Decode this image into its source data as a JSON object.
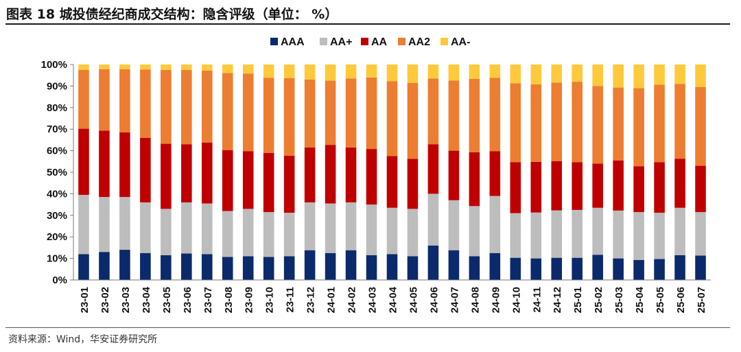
{
  "title": "图表 18 城投债经纪商成交结构：隐含评级（单位： %）",
  "source": "资料来源：Wind，华安证券研究所",
  "chart_data": {
    "type": "bar",
    "stacked": true,
    "title": "图表 18 城投债经纪商成交结构：隐含评级（单位： %）",
    "xlabel": "",
    "ylabel": "",
    "ylim": [
      0,
      100
    ],
    "y_ticks": [
      "0%",
      "10%",
      "20%",
      "30%",
      "40%",
      "50%",
      "60%",
      "70%",
      "80%",
      "90%",
      "100%"
    ],
    "legend_position": "top-center",
    "categories": [
      "23-01",
      "23-02",
      "23-03",
      "23-04",
      "23-05",
      "23-06",
      "23-07",
      "23-08",
      "23-09",
      "23-10",
      "23-11",
      "23-12",
      "24-01",
      "24-02",
      "24-03",
      "24-04",
      "24-05",
      "24-06",
      "24-07",
      "24-08",
      "24-09",
      "24-10",
      "24-11",
      "24-12",
      "25-01",
      "25-02",
      "25-03",
      "25-04",
      "25-05",
      "25-06",
      "25-07"
    ],
    "series": [
      {
        "name": "AAA",
        "color": "#0b2a6b",
        "values": [
          12,
          13,
          14,
          12.5,
          11.5,
          12.3,
          12,
          10.7,
          11,
          10.7,
          11,
          13.8,
          12.5,
          13.8,
          11.5,
          12,
          11,
          16,
          13.8,
          11,
          12.5,
          10.3,
          10,
          10.3,
          10.3,
          11.7,
          10,
          9.3,
          9.7,
          11.5,
          11.3
        ]
      },
      {
        "name": "AA+",
        "color": "#bdbdbd",
        "values": [
          27.5,
          25.5,
          24.5,
          23.5,
          21.5,
          23.7,
          23.5,
          21.3,
          22,
          20.8,
          20.2,
          22.2,
          23,
          22.2,
          23.5,
          21.5,
          22,
          24,
          23.2,
          23.3,
          26.5,
          20.7,
          21.3,
          22,
          22.2,
          21.8,
          22.2,
          22.2,
          21.5,
          22,
          20.2
        ]
      },
      {
        "name": "AA",
        "color": "#c00000",
        "values": [
          30.7,
          30.8,
          30,
          30,
          30.2,
          27,
          28.3,
          28.3,
          26.8,
          27.5,
          26.5,
          25.5,
          27.2,
          25.5,
          25.8,
          24,
          23.2,
          23,
          23,
          25,
          20.8,
          23.7,
          23.5,
          22.8,
          22.2,
          20.5,
          23.3,
          21.3,
          23.5,
          22.8,
          21.5
        ]
      },
      {
        "name": "AA2",
        "color": "#ed7d31",
        "values": [
          27.3,
          28.5,
          29.3,
          31.7,
          34.3,
          34.5,
          33.4,
          35.7,
          36,
          34.8,
          36,
          31.5,
          29.8,
          32,
          33.2,
          34.7,
          35.3,
          30.5,
          32.6,
          34,
          34,
          36.6,
          36,
          36.5,
          37.3,
          36,
          33.8,
          36.2,
          36,
          34.7,
          36.5
        ]
      },
      {
        "name": "AA-",
        "color": "#ffc93c",
        "values": [
          2.5,
          2.2,
          2.2,
          2.3,
          2.5,
          2.5,
          2.8,
          4,
          4.2,
          6.2,
          6.3,
          7,
          7.5,
          6.5,
          6,
          7.8,
          8.5,
          6.5,
          7.4,
          6.7,
          6.2,
          8.7,
          9.2,
          8.4,
          8,
          10,
          10.7,
          11,
          9.3,
          9,
          10.5
        ]
      }
    ]
  }
}
